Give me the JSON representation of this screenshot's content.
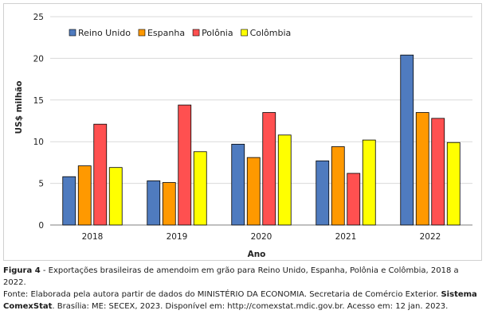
{
  "chart_data": {
    "type": "bar",
    "categories": [
      "2018",
      "2019",
      "2020",
      "2021",
      "2022"
    ],
    "series": [
      {
        "name": "Reino Unido",
        "color": "#4f7bbf",
        "values": [
          5.8,
          5.3,
          9.7,
          7.7,
          20.4
        ]
      },
      {
        "name": "Espanha",
        "color": "#ff9900",
        "values": [
          7.1,
          5.1,
          8.1,
          9.4,
          13.5
        ]
      },
      {
        "name": "Polônia",
        "color": "#ff5050",
        "values": [
          12.1,
          14.4,
          13.5,
          6.2,
          12.8
        ]
      },
      {
        "name": "Colômbia",
        "color": "#ffff00",
        "values": [
          6.9,
          8.8,
          10.8,
          10.2,
          9.9
        ]
      }
    ],
    "ylim": [
      0,
      25
    ],
    "yticks": [
      "0",
      "5",
      "10",
      "15",
      "20",
      "25"
    ],
    "xlabel": "Ano",
    "ylabel": "US$ milhão",
    "grid": true,
    "legend_position": "top-left"
  },
  "caption": {
    "figure_label": "Figura 4",
    "figure_text": " - Exportações brasileiras de amendoim em grão para Reino Unido, Espanha, Polônia e Colômbia, 2018 a 2022.",
    "source_start": "Fonte: Elaborada pela autora partir de dados do MINISTÉRIO DA ECONOMIA. Secretaria de Comércio Exterior. ",
    "source_bold": "Sistema ComexStat",
    "source_end": ". Brasília: ME: SECEX, 2023. Disponível em: http://comexstat.mdic.gov.br. Acesso em: 12 jan. 2023."
  }
}
